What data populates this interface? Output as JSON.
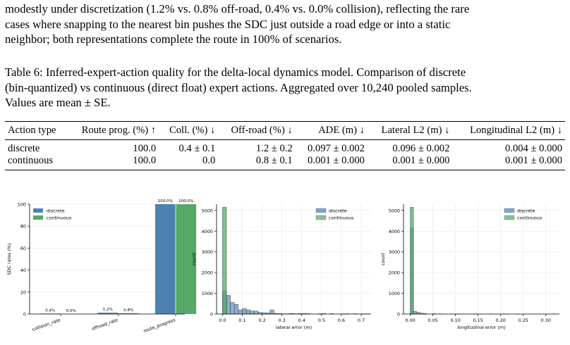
{
  "paragraph": {
    "line1": "modestly under discretization (1.2% vs. 0.8% off-road, 0.4% vs. 0.0% collision), reflecting the rare",
    "line2": "cases where snapping to the nearest bin pushes the SDC just outside a road edge or into a static",
    "line3": "neighbor; both representations complete the route in 100% of scenarios."
  },
  "caption": {
    "line1": "Table 6: Inferred-expert-action quality for the delta-local dynamics model. Comparison of discrete",
    "line2": "(bin-quantized) vs continuous (direct float) expert actions. Aggregated over 10,240 pooled samples.",
    "line3": "Values are mean ± SE."
  },
  "table": {
    "headers": [
      "Action type",
      "Route prog. (%) ↑",
      "Coll. (%) ↓",
      "Off-road (%) ↓",
      "ADE (m) ↓",
      "Lateral L2 (m) ↓",
      "Longitudinal L2 (m) ↓"
    ],
    "rows": [
      [
        "discrete",
        "100.0",
        "0.4 ± 0.1",
        "1.2 ± 0.2",
        "0.097 ± 0.002",
        "0.096 ± 0.002",
        "0.004 ± 0.000"
      ],
      [
        "continuous",
        "100.0",
        "0.0",
        "0.8 ± 0.1",
        "0.001 ± 0.000",
        "0.001 ± 0.000",
        "0.001 ± 0.000"
      ]
    ]
  },
  "colors": {
    "discrete": "#4C82B0",
    "continuous": "#55A868"
  },
  "chart_data": [
    {
      "type": "bar",
      "title": "",
      "xlabel": "",
      "ylabel": "SDC rates (%)",
      "ylim": [
        0,
        100
      ],
      "yticks": [
        "0",
        "20",
        "40",
        "60",
        "80",
        "100"
      ],
      "categories": [
        "collision_rate",
        "offroad_rate",
        "route_progress"
      ],
      "series": [
        {
          "name": "discrete",
          "values": [
            0.4,
            1.2,
            100.0
          ],
          "labels": [
            "0.4%",
            "1.2%",
            "100.0%"
          ]
        },
        {
          "name": "continuous",
          "values": [
            0.0,
            0.8,
            100.0
          ],
          "labels": [
            "0.0%",
            "0.8%",
            "100.0%"
          ]
        }
      ],
      "legend": "top-left",
      "grid": true
    },
    {
      "type": "histogram",
      "xlabel": "lateral error (m)",
      "ylabel": "count",
      "xlim": [
        -0.03,
        0.75
      ],
      "ylim": [
        0,
        5300
      ],
      "xticks": [
        "0.0",
        "0.1",
        "0.2",
        "0.3",
        "0.4",
        "0.5",
        "0.6",
        "0.7"
      ],
      "yticks": [
        "0",
        "1000",
        "2000",
        "3000",
        "4000",
        "5000"
      ],
      "bin_width": 0.02,
      "series": [
        {
          "name": "discrete",
          "bins": [
            [
              0.0,
              1100
            ],
            [
              0.02,
              900
            ],
            [
              0.04,
              560
            ],
            [
              0.06,
              470
            ],
            [
              0.08,
              200
            ],
            [
              0.1,
              270
            ],
            [
              0.12,
              200
            ],
            [
              0.14,
              150
            ],
            [
              0.16,
              140
            ],
            [
              0.18,
              80
            ],
            [
              0.2,
              60
            ],
            [
              0.22,
              50
            ],
            [
              0.24,
              200
            ],
            [
              0.26,
              25
            ],
            [
              0.28,
              20
            ],
            [
              0.3,
              10
            ],
            [
              0.32,
              15
            ],
            [
              0.34,
              30
            ],
            [
              0.36,
              12
            ],
            [
              0.38,
              20
            ],
            [
              0.4,
              22
            ],
            [
              0.42,
              18
            ],
            [
              0.48,
              14
            ],
            [
              0.5,
              20
            ],
            [
              0.54,
              18
            ],
            [
              0.6,
              12
            ],
            [
              0.62,
              15
            ],
            [
              0.66,
              15
            ],
            [
              0.7,
              12
            ],
            [
              0.72,
              10
            ]
          ]
        },
        {
          "name": "continuous",
          "bins": [
            [
              0.0,
              5150
            ]
          ]
        }
      ],
      "legend": "top-right",
      "grid": true
    },
    {
      "type": "histogram",
      "xlabel": "longitudinal error (m)",
      "ylabel": "count",
      "xlim": [
        -0.015,
        0.33
      ],
      "ylim": [
        0,
        5300
      ],
      "xticks": [
        "0.00",
        "0.05",
        "0.10",
        "0.15",
        "0.20",
        "0.25",
        "0.30"
      ],
      "yticks": [
        "0",
        "1000",
        "2000",
        "3000",
        "4000",
        "5000"
      ],
      "bin_width": 0.007,
      "series": [
        {
          "name": "discrete",
          "bins": [
            [
              0.0,
              4150
            ],
            [
              0.007,
              130
            ],
            [
              0.014,
              80
            ],
            [
              0.021,
              40
            ],
            [
              0.028,
              30
            ],
            [
              0.049,
              15
            ],
            [
              0.063,
              10
            ],
            [
              0.098,
              8
            ],
            [
              0.105,
              6
            ],
            [
              0.14,
              5
            ],
            [
              0.175,
              4
            ],
            [
              0.203,
              3
            ],
            [
              0.315,
              3
            ]
          ]
        },
        {
          "name": "continuous",
          "bins": [
            [
              0.0,
              5150
            ]
          ]
        }
      ],
      "legend": "top-right",
      "grid": true
    }
  ]
}
